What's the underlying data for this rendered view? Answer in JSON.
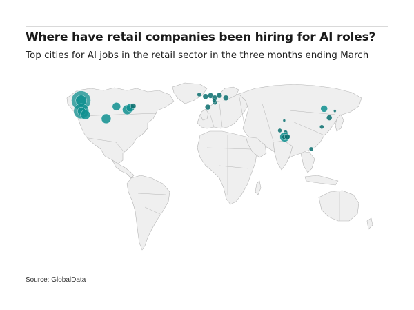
{
  "header": {
    "title": "Where have retail companies been hiring for AI roles?",
    "subtitle": "Top cities for AI jobs in the retail sector in the three months ending March"
  },
  "footer": {
    "source": "Source: GlobalData"
  },
  "colors": {
    "bubble": "#0f8f8f",
    "bubble_dark": "#0b6e6e",
    "land": "#efefef",
    "border": "#b5b5b5"
  },
  "map": {
    "projection": "equirectangular-approx",
    "bubbles": [
      {
        "region": "US west coast (north)",
        "lon": -122.4,
        "lat": 47.6,
        "size": 14
      },
      {
        "region": "US west coast (north) inner",
        "lon": -122.3,
        "lat": 47.6,
        "size": 8
      },
      {
        "region": "US west coast (central)",
        "lon": -122.2,
        "lat": 37.5,
        "size": 11
      },
      {
        "region": "US west coast (central) inner",
        "lon": -121.9,
        "lat": 37.3,
        "size": 6
      },
      {
        "region": "US west coast (south)",
        "lon": -118.2,
        "lat": 34.0,
        "size": 7
      },
      {
        "region": "US south",
        "lon": -97.7,
        "lat": 30.3,
        "size": 7
      },
      {
        "region": "US midwest",
        "lon": -87.6,
        "lat": 41.9,
        "size": 6
      },
      {
        "region": "US east",
        "lon": -77.0,
        "lat": 38.9,
        "size": 7
      },
      {
        "region": "US northeast",
        "lon": -74.0,
        "lat": 40.7,
        "size": 6
      },
      {
        "region": "US northeast 2",
        "lon": -71.1,
        "lat": 42.4,
        "size": 4
      },
      {
        "region": "UK",
        "lon": -0.1,
        "lat": 51.5,
        "size": 4
      },
      {
        "region": "Ireland",
        "lon": -6.3,
        "lat": 53.3,
        "size": 3
      },
      {
        "region": "Netherlands",
        "lon": 4.9,
        "lat": 52.4,
        "size": 4
      },
      {
        "region": "Germany",
        "lon": 9.0,
        "lat": 50.1,
        "size": 4
      },
      {
        "region": "Germany east",
        "lon": 13.4,
        "lat": 52.5,
        "size": 4
      },
      {
        "region": "Poland",
        "lon": 19.9,
        "lat": 50.1,
        "size": 4
      },
      {
        "region": "Spain",
        "lon": 2.2,
        "lat": 41.4,
        "size": 4
      },
      {
        "region": "Italy",
        "lon": 9.2,
        "lat": 45.5,
        "size": 3
      },
      {
        "region": "Switzerland",
        "lon": 8.5,
        "lat": 47.4,
        "size": 3
      },
      {
        "region": "India north",
        "lon": 77.2,
        "lat": 28.6,
        "size": 2
      },
      {
        "region": "India west",
        "lon": 72.9,
        "lat": 19.1,
        "size": 3
      },
      {
        "region": "India central",
        "lon": 78.5,
        "lat": 17.4,
        "size": 3
      },
      {
        "region": "India south",
        "lon": 77.6,
        "lat": 12.9,
        "size": 7
      },
      {
        "region": "India south inner",
        "lon": 77.6,
        "lat": 12.9,
        "size": 4
      },
      {
        "region": "India southeast",
        "lon": 80.3,
        "lat": 13.1,
        "size": 4
      },
      {
        "region": "China north",
        "lon": 116.4,
        "lat": 39.9,
        "size": 5
      },
      {
        "region": "China east",
        "lon": 121.5,
        "lat": 31.2,
        "size": 4
      },
      {
        "region": "China south",
        "lon": 114.1,
        "lat": 22.5,
        "size": 3
      },
      {
        "region": "Southeast Asia",
        "lon": 103.8,
        "lat": 1.35,
        "size": 3
      },
      {
        "region": "Korea",
        "lon": 127.0,
        "lat": 37.6,
        "size": 2
      }
    ]
  }
}
